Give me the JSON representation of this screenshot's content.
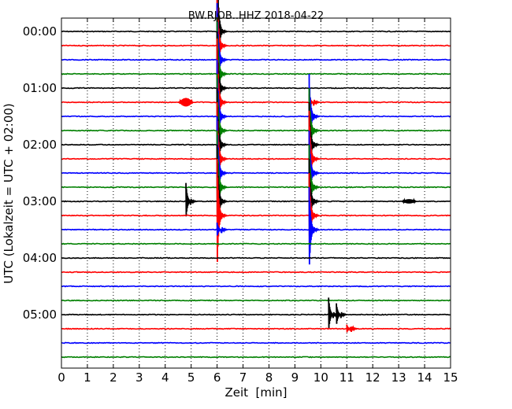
{
  "chart_data": {
    "type": "line",
    "title": "BW.RJOB..HHZ 2018-04-22",
    "xlabel": "Zeit  [min]",
    "ylabel": "UTC (Lokalzeit = UTC + 02:00)",
    "xlim": [
      0,
      15
    ],
    "x_ticks": [
      "0",
      "1",
      "2",
      "3",
      "4",
      "5",
      "6",
      "7",
      "8",
      "9",
      "10",
      "11",
      "12",
      "13",
      "14",
      "15"
    ],
    "y_ticks": [
      "00:00",
      "01:00",
      "02:00",
      "03:00",
      "04:00",
      "05:00"
    ],
    "grid": true,
    "trace_interval_minutes": 15,
    "trace_colors": [
      "#000000",
      "#ff0000",
      "#0000ff",
      "#008000"
    ],
    "series": [
      {
        "start": "00:00",
        "color": "#000000",
        "events": [
          {
            "x": 6.0,
            "amplitude": 5.6,
            "kind": "spike"
          }
        ]
      },
      {
        "start": "00:15",
        "color": "#ff0000",
        "events": [
          {
            "x": 6.0,
            "amplitude": 4.0,
            "kind": "spike"
          }
        ]
      },
      {
        "start": "00:30",
        "color": "#0000ff",
        "events": [
          {
            "x": 6.0,
            "amplitude": 4.0,
            "kind": "spike"
          }
        ]
      },
      {
        "start": "00:45",
        "color": "#008000",
        "events": [
          {
            "x": 6.0,
            "amplitude": 4.0,
            "kind": "spike"
          }
        ]
      },
      {
        "start": "01:00",
        "color": "#000000",
        "events": [
          {
            "x": 6.0,
            "amplitude": 4.0,
            "kind": "spike"
          }
        ]
      },
      {
        "start": "01:15",
        "color": "#ff0000",
        "events": [
          {
            "x": 4.8,
            "amplitude": 0.3,
            "kind": "burst"
          },
          {
            "x": 6.0,
            "amplitude": 4.5,
            "kind": "spike"
          },
          {
            "x": 9.55,
            "amplitude": 0.6,
            "kind": "spike"
          }
        ]
      },
      {
        "start": "01:30",
        "color": "#0000ff",
        "events": [
          {
            "x": 6.0,
            "amplitude": 4.0,
            "kind": "spike"
          },
          {
            "x": 9.55,
            "amplitude": 3.0,
            "kind": "spike"
          }
        ]
      },
      {
        "start": "01:45",
        "color": "#008000",
        "events": [
          {
            "x": 6.0,
            "amplitude": 4.0,
            "kind": "spike"
          },
          {
            "x": 9.55,
            "amplitude": 3.0,
            "kind": "spike"
          }
        ]
      },
      {
        "start": "02:00",
        "color": "#000000",
        "events": [
          {
            "x": 6.0,
            "amplitude": 4.0,
            "kind": "spike"
          },
          {
            "x": 9.55,
            "amplitude": 3.0,
            "kind": "spike"
          }
        ]
      },
      {
        "start": "02:15",
        "color": "#ff0000",
        "events": [
          {
            "x": 6.0,
            "amplitude": 4.0,
            "kind": "spike"
          },
          {
            "x": 9.55,
            "amplitude": 3.4,
            "kind": "spike"
          }
        ]
      },
      {
        "start": "02:30",
        "color": "#0000ff",
        "events": [
          {
            "x": 6.0,
            "amplitude": 4.0,
            "kind": "spike"
          },
          {
            "x": 9.55,
            "amplitude": 3.0,
            "kind": "spike"
          }
        ]
      },
      {
        "start": "02:45",
        "color": "#008000",
        "events": [
          {
            "x": 6.0,
            "amplitude": 4.0,
            "kind": "spike"
          },
          {
            "x": 9.55,
            "amplitude": 3.0,
            "kind": "spike"
          }
        ]
      },
      {
        "start": "03:00",
        "color": "#000000",
        "events": [
          {
            "x": 4.8,
            "amplitude": 1.3,
            "kind": "spike"
          },
          {
            "x": 6.0,
            "amplitude": 4.0,
            "kind": "spike"
          },
          {
            "x": 9.55,
            "amplitude": 3.0,
            "kind": "spike"
          },
          {
            "x": 13.4,
            "amplitude": 0.15,
            "kind": "burst"
          }
        ]
      },
      {
        "start": "03:15",
        "color": "#ff0000",
        "events": [
          {
            "x": 6.0,
            "amplitude": 4.0,
            "kind": "spike"
          },
          {
            "x": 9.55,
            "amplitude": 3.0,
            "kind": "spike"
          }
        ]
      },
      {
        "start": "03:30",
        "color": "#0000ff",
        "events": [
          {
            "x": 6.0,
            "amplitude": 0.5,
            "kind": "spike"
          },
          {
            "x": 9.55,
            "amplitude": 3.0,
            "kind": "spike"
          }
        ]
      },
      {
        "start": "03:45",
        "color": "#008000",
        "events": []
      },
      {
        "start": "04:00",
        "color": "#000000",
        "events": []
      },
      {
        "start": "04:15",
        "color": "#ff0000",
        "events": []
      },
      {
        "start": "04:30",
        "color": "#0000ff",
        "events": []
      },
      {
        "start": "04:45",
        "color": "#008000",
        "events": []
      },
      {
        "start": "05:00",
        "color": "#000000",
        "events": [
          {
            "x": 10.3,
            "amplitude": 1.2,
            "kind": "spike"
          },
          {
            "x": 10.6,
            "amplitude": 0.8,
            "kind": "spike"
          }
        ]
      },
      {
        "start": "05:15",
        "color": "#ff0000",
        "events": [
          {
            "x": 11.0,
            "amplitude": 0.3,
            "kind": "spike"
          }
        ]
      },
      {
        "start": "05:30",
        "color": "#0000ff",
        "events": []
      },
      {
        "start": "05:45",
        "color": "#008000",
        "events": []
      }
    ]
  }
}
